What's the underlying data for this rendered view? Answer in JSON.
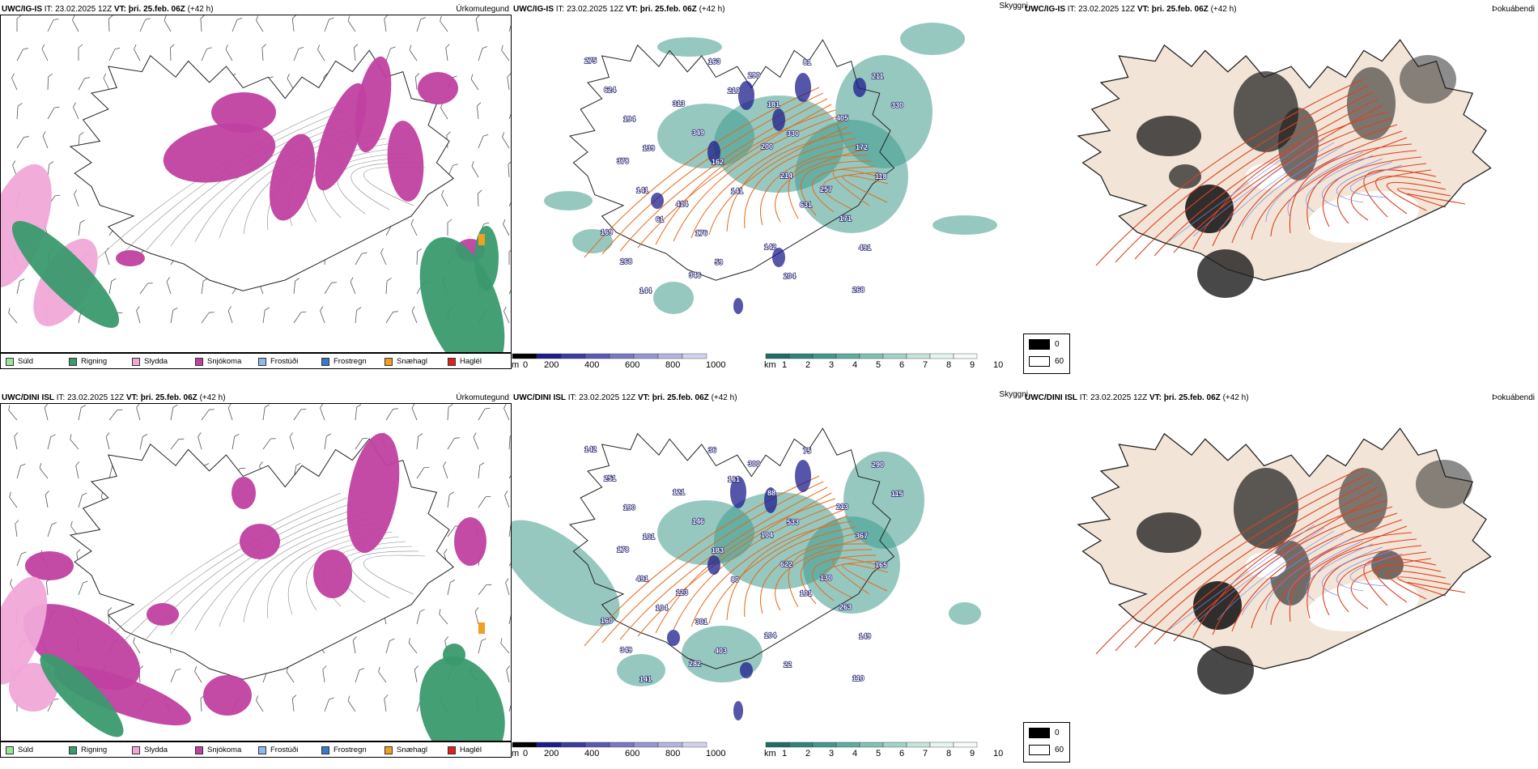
{
  "rows": [
    {
      "model": "UWC/IG-IS",
      "it_label": "IT:",
      "it": "23.02.2025 12Z",
      "vt_label": "VT:",
      "vt": "þri. 25.feb. 06Z",
      "lead": "(+42 h)",
      "precip_type_label": "Úrkomutegund",
      "visibility_label": "Skyggni",
      "fog_label": "Þokuábendi",
      "elev_labels": [
        "275",
        "313",
        "200",
        "257",
        "169",
        "346",
        "290",
        "405",
        "378",
        "414",
        "142",
        "268",
        "624",
        "349",
        "214",
        "171",
        "268",
        "163",
        "181",
        "172",
        "141",
        "176",
        "204",
        "211",
        "194",
        "162",
        "631",
        "491",
        "144",
        "210",
        "330",
        "118",
        "61",
        "59",
        "81",
        "330",
        "139",
        "141"
      ]
    },
    {
      "model": "UWC/DINI ISL",
      "it_label": "IT:",
      "it": "23.02.2025 12Z",
      "vt_label": "VT:",
      "vt": "þri. 25.feb. 06Z",
      "lead": "(+42 h)",
      "precip_type_label": "Úrkomutegund",
      "visibility_label": "Skyggni",
      "fog_label": "Þokuábendi",
      "elev_labels": [
        "142",
        "121",
        "104",
        "130",
        "160",
        "282",
        "300",
        "213",
        "178",
        "123",
        "104",
        "110",
        "251",
        "146",
        "622",
        "263",
        "349",
        "36",
        "88",
        "367",
        "491",
        "301",
        "22",
        "290",
        "190",
        "183",
        "101",
        "149",
        "141",
        "161",
        "533",
        "165",
        "104",
        "403",
        "75",
        "115",
        "101",
        "80"
      ]
    }
  ],
  "precip_legend": [
    {
      "label": "Súld",
      "color": "#9be59b"
    },
    {
      "label": "Rigning",
      "color": "#3a9a6e"
    },
    {
      "label": "Slydda",
      "color": "#f0a8d8"
    },
    {
      "label": "Snjókoma",
      "color": "#c040a0"
    },
    {
      "label": "Frostúði",
      "color": "#8fb8ec"
    },
    {
      "label": "Frostregn",
      "color": "#3a78c8"
    },
    {
      "label": "Snæhagl",
      "color": "#f0a020"
    },
    {
      "label": "Haglél",
      "color": "#e02020"
    }
  ],
  "elev_bar": {
    "unit": "m",
    "ticks": [
      "0",
      "200",
      "400",
      "600",
      "800",
      "1000"
    ]
  },
  "vis_bar": {
    "unit": "km",
    "ticks": [
      "1",
      "2",
      "3",
      "4",
      "5",
      "6",
      "7",
      "8",
      "9",
      "10"
    ]
  },
  "fog_legend": {
    "values": [
      "0",
      "60"
    ]
  },
  "colors": {
    "snow": "#c040a0",
    "sleet": "#f0a8d8",
    "rain": "#3a9a6e",
    "vis": "#3f9a8c",
    "elev": "#1c1c8c",
    "roads": "#e66a1a",
    "land": "#f2e4d6",
    "fog_dark": "#1a1a1a"
  }
}
